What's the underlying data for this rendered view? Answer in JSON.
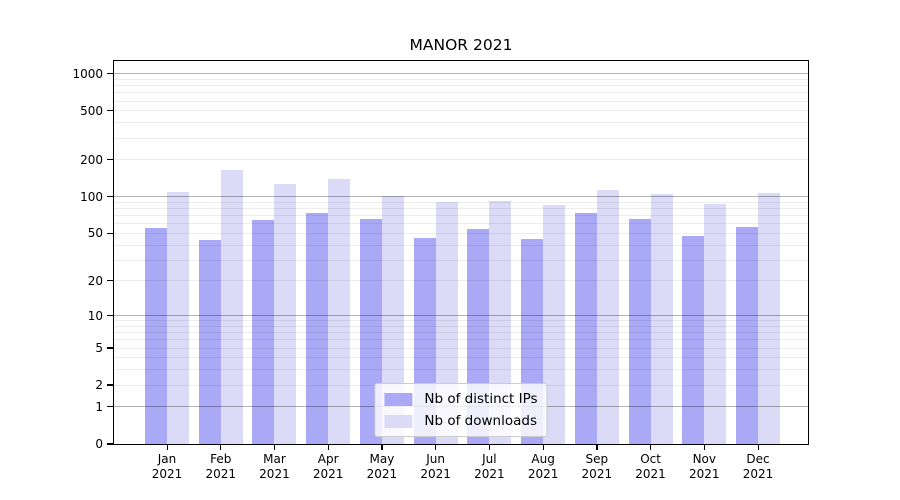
{
  "title": "MANOR 2021",
  "chart_data": {
    "type": "bar",
    "title": "MANOR 2021",
    "yscale": "log1p",
    "ylim": [
      0,
      1272
    ],
    "grid": true,
    "legend_position": "lower center",
    "categories": [
      "Jan 2021",
      "Feb 2021",
      "Mar 2021",
      "Apr 2021",
      "May 2021",
      "Jun 2021",
      "Jul 2021",
      "Aug 2021",
      "Sep 2021",
      "Oct 2021",
      "Nov 2021",
      "Dec 2021"
    ],
    "series": [
      {
        "name": "Nb of distinct IPs",
        "color": "#a9a9f5",
        "values": [
          55,
          44,
          64,
          73,
          66,
          46,
          54,
          45,
          74,
          66,
          48,
          56
        ]
      },
      {
        "name": "Nb of downloads",
        "color": "#dbdbf7",
        "values": [
          110,
          164,
          126,
          141,
          102,
          90,
          92,
          85,
          113,
          106,
          87,
          107
        ]
      }
    ],
    "y_tick_values": [
      1000,
      500,
      200,
      100,
      50,
      20,
      10,
      5,
      2,
      1,
      0
    ],
    "y_tick_labels": [
      "1000",
      "500",
      "200",
      "100",
      "50",
      "20",
      "10",
      "5",
      "2",
      "1",
      "0"
    ],
    "major_gridline_values": [
      1,
      10,
      100,
      1000
    ]
  },
  "colors": {
    "spine": "#000000",
    "major_grid": "rgba(0,0,0,0.30)",
    "minor_grid": "rgba(0,0,0,0.07)",
    "legend_border": "#cccccc",
    "legend_bg": "rgba(255,255,255,0.8)",
    "text": "#000000"
  }
}
